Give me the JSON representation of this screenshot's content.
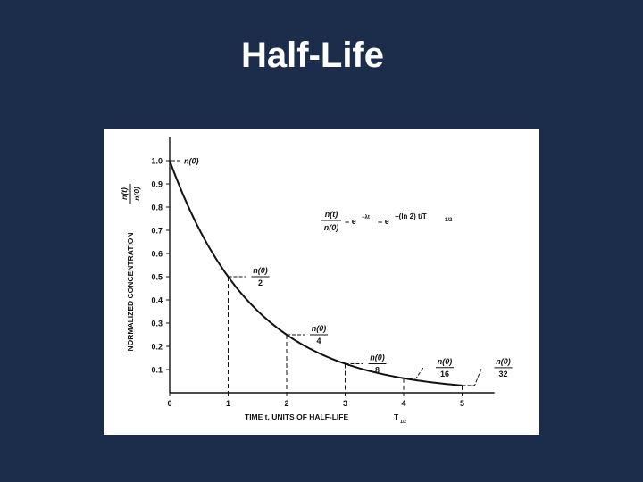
{
  "slide": {
    "title": "Half-Life"
  },
  "chart_data": {
    "type": "line",
    "title": "",
    "xlabel": "TIME t, UNITS OF HALF-LIFE",
    "xlabel_subscript": "1/2",
    "xlabel_symbol": "T",
    "ylabel": "NORMALIZED CONCENTRATION",
    "ylabel_fraction": {
      "num": "n(t)",
      "den": "n(0)"
    },
    "xlim": [
      0,
      5.4
    ],
    "ylim": [
      0,
      1.05
    ],
    "x_ticks": [
      0,
      1,
      2,
      3,
      4,
      5
    ],
    "x_tick_labels": [
      "0",
      "1",
      "2",
      "3",
      "4",
      "5"
    ],
    "y_ticks": [
      0.1,
      0.2,
      0.3,
      0.4,
      0.5,
      0.6,
      0.7,
      0.8,
      0.9,
      1.0
    ],
    "y_tick_labels": [
      "0.1",
      "0.2",
      "0.3",
      "0.4",
      "0.5",
      "0.6",
      "0.7",
      "0.8",
      "0.9",
      "1.0"
    ],
    "grid": false,
    "series": [
      {
        "x": [
          0,
          0.5,
          1,
          1.5,
          2,
          2.5,
          3,
          3.5,
          4,
          4.5,
          5
        ],
        "values": [
          1.0,
          0.707,
          0.5,
          0.354,
          0.25,
          0.177,
          0.125,
          0.088,
          0.0625,
          0.044,
          0.031
        ]
      }
    ],
    "markers": [
      {
        "x": 0,
        "y": 1.0,
        "numerator": "n(0)",
        "denominator": ""
      },
      {
        "x": 1,
        "y": 0.5,
        "numerator": "n(0)",
        "denominator": "2"
      },
      {
        "x": 2,
        "y": 0.25,
        "numerator": "n(0)",
        "denominator": "4"
      },
      {
        "x": 3,
        "y": 0.125,
        "numerator": "n(0)",
        "denominator": "8"
      },
      {
        "x": 4,
        "y": 0.0625,
        "numerator": "n(0)",
        "denominator": "16"
      },
      {
        "x": 5,
        "y": 0.03125,
        "numerator": "n(0)",
        "denominator": "32"
      }
    ],
    "equation": {
      "lhs_num": "n(t)",
      "lhs_den": "n(0)",
      "rhs": "= e",
      "exp1": "−λt",
      "rhs2": "= e",
      "exp2": "−(ln 2) t/T",
      "exp2_sub": "1/2"
    }
  }
}
